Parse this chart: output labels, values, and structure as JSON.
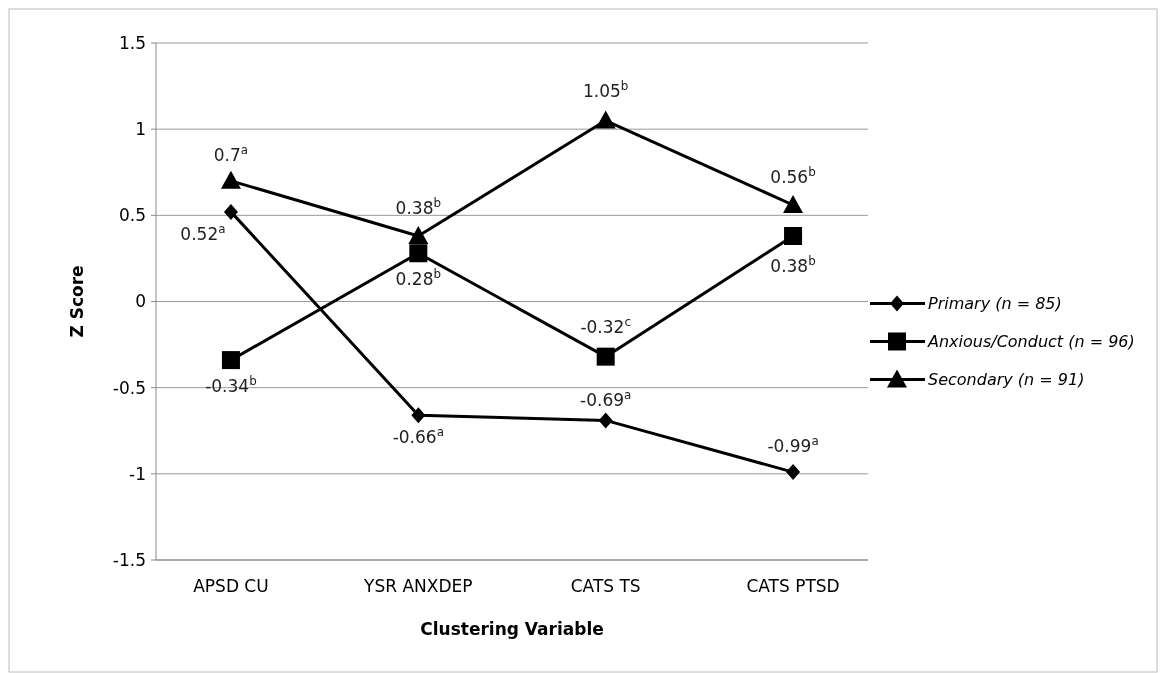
{
  "chart_data": {
    "type": "line",
    "xlabel": "Clustering Variable",
    "ylabel": "Z Score",
    "categories": [
      "APSD CU",
      "YSR ANXDEP",
      "CATS TS",
      "CATS PTSD"
    ],
    "series": [
      {
        "name": "Primary (n = 85)",
        "color": "#000000",
        "marker": "diamond",
        "values": [
          0.52,
          -0.66,
          -0.69,
          -0.99
        ],
        "value_labels": [
          "0.52$^{a}$",
          "-0.66$^{a}$",
          "-0.69$^{a}$",
          "-0.99$^{a}$"
        ]
      },
      {
        "name": "Anxious/Conduct (n = 96)",
        "color": "#000000",
        "marker": "square",
        "values": [
          -0.34,
          0.28,
          -0.32,
          0.38
        ],
        "value_labels": [
          "-0.34$^{b}$",
          "0.28$^{b}$",
          "-0.32$^{c}$",
          "0.38$^{b}$"
        ]
      },
      {
        "name": "Secondary (n = 91)",
        "color": "#000000",
        "marker": "triangle",
        "values": [
          0.7,
          0.38,
          1.05,
          0.56
        ],
        "value_labels": [
          "0.7$^{a}$",
          "0.38$^{b}$",
          "1.05$^{b}$",
          "0.56$^{b}$"
        ]
      }
    ],
    "ylim": [
      -1.5,
      1.5
    ],
    "yticks": [
      -1.5,
      -1,
      -0.5,
      0,
      0.5,
      1,
      1.5
    ],
    "grid": "y",
    "legend": "right",
    "line_style": "solid"
  }
}
